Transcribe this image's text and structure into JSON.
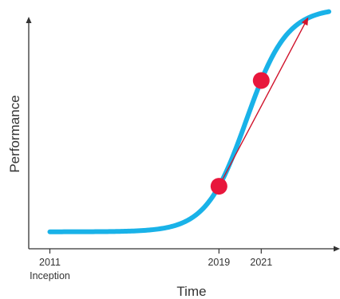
{
  "chart_data": {
    "type": "line",
    "title": "",
    "xlabel": "Time",
    "ylabel": "Performance",
    "x_ticks": [
      {
        "label": "2011",
        "sublabel": "Inception",
        "value": 2011
      },
      {
        "label": "2019",
        "sublabel": "",
        "value": 2019
      },
      {
        "label": "2021",
        "sublabel": "",
        "value": 2021
      }
    ],
    "xlim": [
      2010,
      2024.5
    ],
    "ylim": [
      0,
      1
    ],
    "series": [
      {
        "shape": "s-curve",
        "color": "#19b2e8",
        "x_start": 2011,
        "x_end": 2024.2,
        "y_min": 0.058,
        "y_max": 1.0,
        "midpoint": 2020.3,
        "steepness": 1.05
      }
    ],
    "highlight_points": [
      {
        "x": 2019,
        "color": "#e8173c"
      },
      {
        "x": 2021,
        "color": "#e8173c"
      }
    ],
    "arrow": {
      "from_x": 2019,
      "to_x": 2023.2,
      "color": "#d0142c"
    },
    "grid": false,
    "legend": "none",
    "colors": {
      "axis": "#333333",
      "text": "#333333",
      "curve": "#19b2e8",
      "points": "#e8173c",
      "arrow": "#d0142c"
    }
  }
}
